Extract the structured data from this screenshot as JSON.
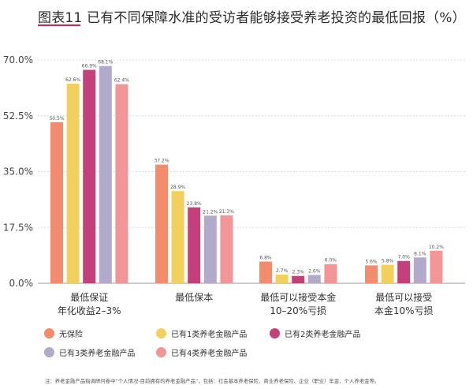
{
  "title": "图表11 已有不同保障水准的受访者能够接受养老投资的最低回报（%）",
  "note": "注：养老金融产品指调研问卷中“个人情况-目前拥有的养老金融产品”，包括：社会基本养老保险、商业养老保险、企业（职业）年金、个人养老金等。",
  "colors": {
    "accent": "#d6224f",
    "series": [
      "#f28c6c",
      "#f2d05e",
      "#c4407a",
      "#b3aacb",
      "#f29596"
    ]
  },
  "chart_data": {
    "type": "bar",
    "categories": [
      [
        "最低保证",
        "年化收益2–3%"
      ],
      [
        "最低保本"
      ],
      [
        "最低可以接受本金",
        "10–20%亏损"
      ],
      [
        "最低可以接受",
        "本金10%亏损"
      ]
    ],
    "series": [
      {
        "name": "无保险",
        "values": [
          50.5,
          37.2,
          6.8,
          5.6
        ]
      },
      {
        "name": "已有1类养老金融产品",
        "values": [
          62.6,
          28.9,
          2.7,
          5.8
        ]
      },
      {
        "name": "已有2类养老金融产品",
        "values": [
          66.9,
          23.8,
          2.3,
          7.0
        ]
      },
      {
        "name": "已有3类养老金融产品",
        "values": [
          68.1,
          21.2,
          2.6,
          8.1
        ]
      },
      {
        "name": "已有4类养老金融产品",
        "values": [
          62.4,
          21.3,
          6.0,
          10.2
        ]
      }
    ],
    "ylim": [
      0,
      70
    ],
    "yticks": [
      "0.0%",
      "17.5%",
      "35.0%",
      "52.5%",
      "70.0%"
    ],
    "ytick_values": [
      0,
      17.5,
      35,
      52.5,
      70
    ],
    "grid": true,
    "legend_placement": "bottom"
  }
}
